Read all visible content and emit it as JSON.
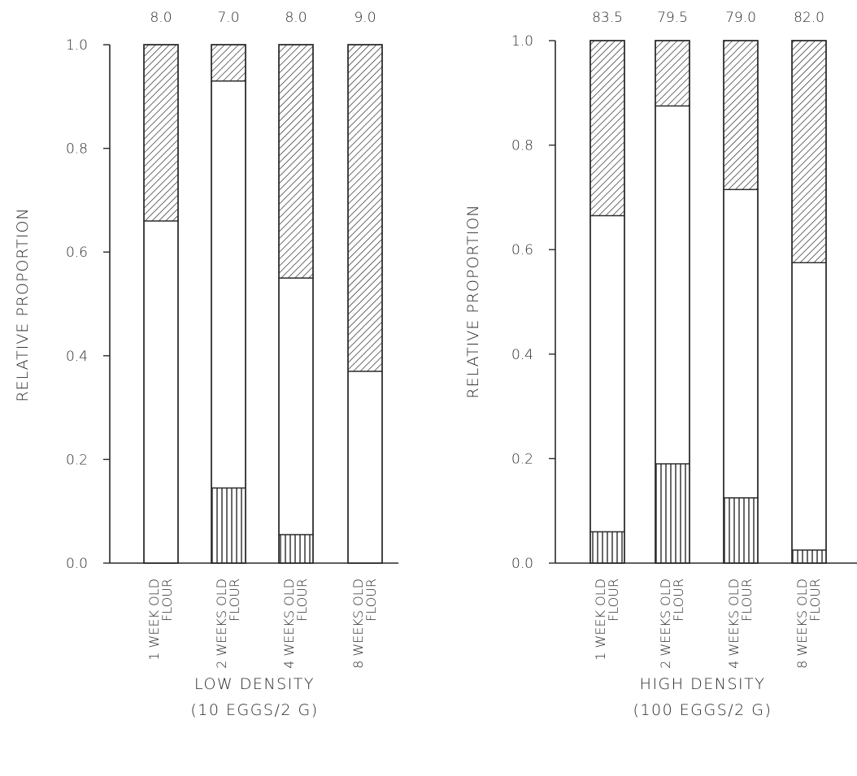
{
  "chart_data": [
    {
      "type": "bar",
      "stacked": true,
      "title": "LOW DENSITY",
      "subtitle": "(10  EGGS/2 G)",
      "xlabel": "",
      "ylabel": "RELATIVE  PROPORTION",
      "ylim": [
        0,
        1
      ],
      "yticks": [
        "0.0",
        "0.2",
        "0.4",
        "0.6",
        "0.8",
        "1.0"
      ],
      "categories": [
        [
          "1 WEEK OLD",
          "FLOUR"
        ],
        [
          "2 WEEKS OLD",
          "FLOUR"
        ],
        [
          "4 WEEKS OLD",
          "FLOUR"
        ],
        [
          "8 WEEKS OLD",
          "FLOUR"
        ]
      ],
      "top_labels": [
        "8.0",
        "7.0",
        "8.0",
        "9.0"
      ],
      "series": [
        {
          "pattern": "vertical-lines",
          "values": [
            0.0,
            0.145,
            0.055,
            0.0
          ]
        },
        {
          "pattern": "blank",
          "values": [
            0.66,
            0.785,
            0.495,
            0.37
          ]
        },
        {
          "pattern": "diagonal-hatch",
          "values": [
            0.34,
            0.07,
            0.45,
            0.63
          ]
        }
      ],
      "grid": false,
      "legend": "none"
    },
    {
      "type": "bar",
      "stacked": true,
      "title": "HIGH  DENSITY",
      "subtitle": "(100  EGGS/2 G)",
      "xlabel": "",
      "ylabel": "RELATIVE  PROPORTION",
      "ylim": [
        0,
        1
      ],
      "yticks": [
        "0.0",
        "0.2",
        "0.4",
        "0.6",
        "0.8",
        "1.0"
      ],
      "categories": [
        [
          "1 WEEK OLD",
          "FLOUR"
        ],
        [
          "2 WEEKS OLD",
          "FLOUR"
        ],
        [
          "4 WEEKS OLD",
          "FLOUR"
        ],
        [
          "8 WEEKS OLD",
          "FLOUR"
        ]
      ],
      "top_labels": [
        "83.5",
        "79.5",
        "79.0",
        "82.0"
      ],
      "series": [
        {
          "pattern": "vertical-lines",
          "values": [
            0.06,
            0.19,
            0.125,
            0.025
          ]
        },
        {
          "pattern": "blank",
          "values": [
            0.605,
            0.685,
            0.59,
            0.55
          ]
        },
        {
          "pattern": "diagonal-hatch",
          "values": [
            0.335,
            0.125,
            0.285,
            0.425
          ]
        }
      ],
      "grid": false,
      "legend": "none"
    }
  ],
  "colors": {
    "ink": "#2a2a2a",
    "paper": "#ffffff"
  }
}
